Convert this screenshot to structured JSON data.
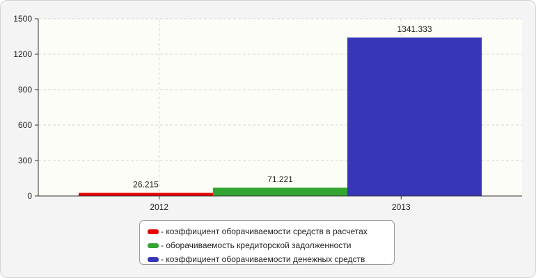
{
  "chart_data": {
    "type": "bar",
    "categories": [
      "2012",
      "2013"
    ],
    "series": [
      {
        "name": "- коэффициент оборачиваемости средств в расчетах",
        "category": "2012",
        "value": 26.215,
        "label": "26.215",
        "color": "#e60000"
      },
      {
        "name": "- оборачиваемость кредиторской задолженности",
        "category": "2012",
        "value": 71.221,
        "label": "71.221",
        "color": "#33a532"
      },
      {
        "name": "- коэффициент оборачиваемости денежных средств",
        "category": "2013",
        "value": 1341.333,
        "label": "1341.333",
        "color": "#3636b6"
      }
    ],
    "ylim": [
      0,
      1500
    ],
    "yticks": [
      "0",
      "300",
      "600",
      "900",
      "1200",
      "1500"
    ],
    "grid": true,
    "legend_position": "bottom-center"
  },
  "colors": {
    "background": "#f4f4f4",
    "plot_background": "#fcfdf6",
    "grid": "#d6d6d6",
    "axis": "#333333"
  }
}
